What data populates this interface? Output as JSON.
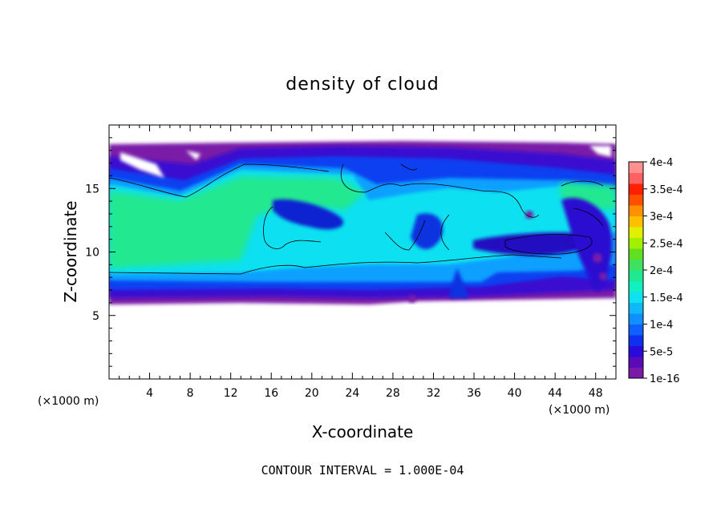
{
  "chart_data": {
    "type": "heatmap",
    "title": "density of cloud",
    "xlabel": "X-coordinate",
    "ylabel": "Z-coordinate",
    "x_unit": "(×1000 m)",
    "z_unit": "(×1000 m)",
    "xlim": [
      0,
      50
    ],
    "ylim": [
      0,
      20
    ],
    "x_ticks": [
      4,
      8,
      12,
      16,
      20,
      24,
      28,
      32,
      36,
      40,
      44,
      48
    ],
    "y_ticks": [
      5,
      10,
      15
    ],
    "footer": "CONTOUR INTERVAL = 1.000E-04",
    "colorbar": {
      "labels": [
        "1e-16",
        "5e-5",
        "1e-4",
        "1.5e-4",
        "2e-4",
        "2.5e-4",
        "3e-4",
        "3.5e-4",
        "4e-4"
      ],
      "colors": [
        "#7a1aa8",
        "#5a0ab8",
        "#2a0ad8",
        "#1030f0",
        "#1060ff",
        "#1090ff",
        "#10b8f8",
        "#10e0f0",
        "#10f0c0",
        "#20e890",
        "#40e060",
        "#60e020",
        "#a0f000",
        "#e0f000",
        "#ffc000",
        "#ff9000",
        "#ff5000",
        "#ff2000",
        "#ff6060",
        "#ff9090"
      ]
    }
  }
}
